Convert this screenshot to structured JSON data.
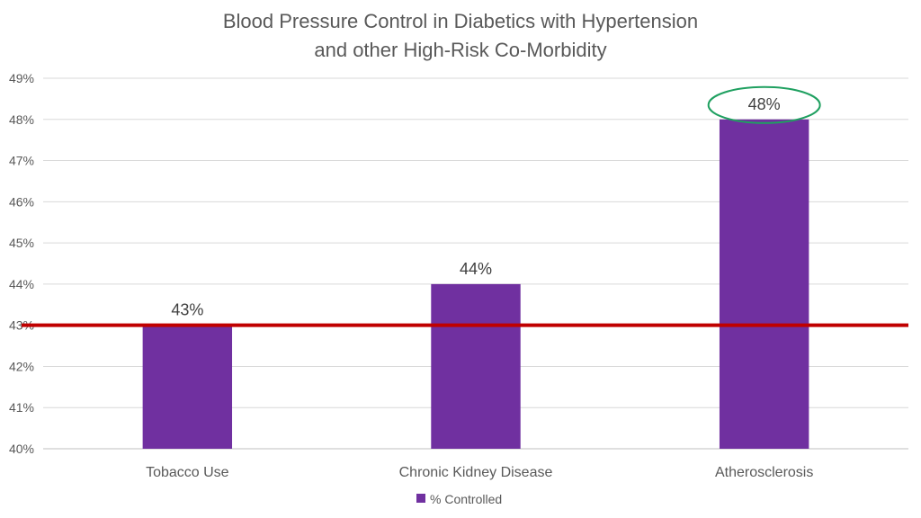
{
  "chart_data": {
    "type": "bar",
    "title_lines": [
      "Blood Pressure Control in Diabetics with Hypertension",
      "and other High-Risk Co-Morbidity"
    ],
    "categories": [
      "Tobacco Use",
      "Chronic Kidney Disease",
      "Atherosclerosis"
    ],
    "series": [
      {
        "name": "% Controlled",
        "values": [
          43,
          44,
          48
        ],
        "color": "#7030a0"
      }
    ],
    "data_labels": [
      "43%",
      "44%",
      "48%"
    ],
    "ylim": [
      40,
      49
    ],
    "yticks": [
      40,
      41,
      42,
      43,
      44,
      45,
      46,
      47,
      48,
      49
    ],
    "ytick_labels": [
      "40%",
      "41%",
      "42%",
      "43%",
      "44%",
      "45%",
      "46%",
      "47%",
      "48%",
      "49%"
    ],
    "grid": true,
    "legend_position": "bottom",
    "reference_line": {
      "value": 43,
      "color": "#c00000"
    },
    "highlight": {
      "category_index": 2,
      "shape": "ellipse",
      "color": "#1fa060"
    },
    "xlabel": "",
    "ylabel": ""
  }
}
